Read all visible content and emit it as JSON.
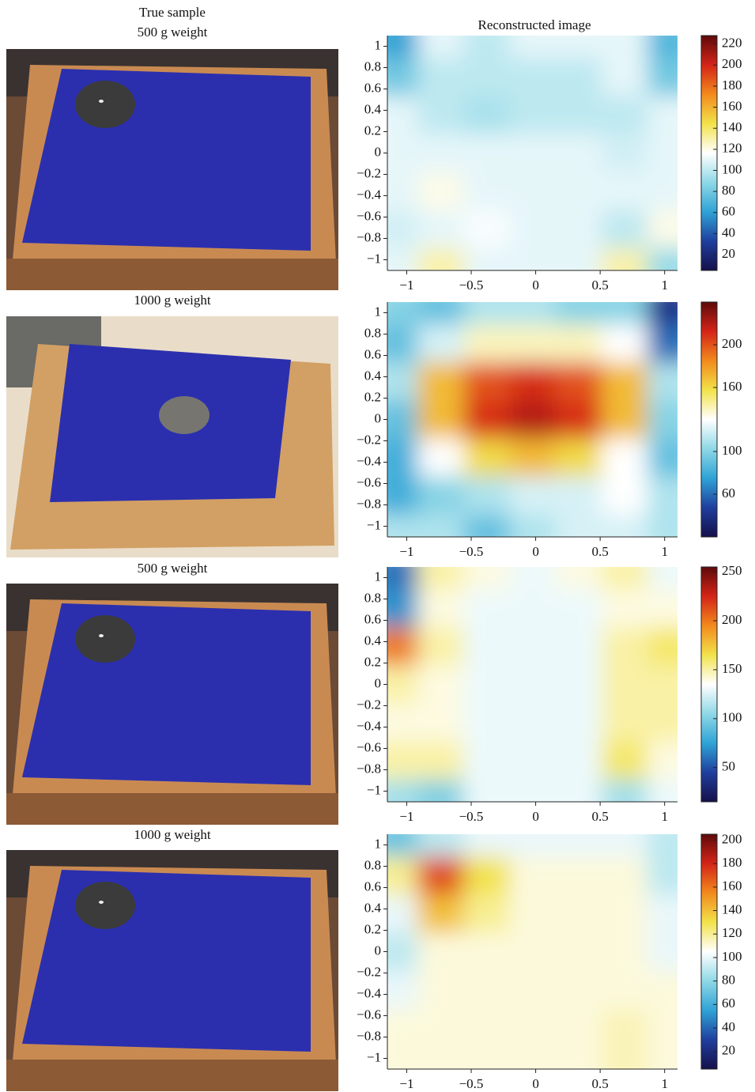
{
  "header": "True sample",
  "chart_data": [
    {
      "type": "heatmap",
      "caption": "500 g weight",
      "title": "Reconstructed image",
      "xlim": [
        -1.15,
        1.1
      ],
      "ylim": [
        -1.1,
        1.1
      ],
      "xticks": [
        {
          "value": -1,
          "label": "−1"
        },
        {
          "value": -0.5,
          "label": "−0.5"
        },
        0,
        0.5,
        1
      ],
      "yticks": [
        {
          "value": -1,
          "label": "−1"
        },
        {
          "value": -0.8,
          "label": "−0.8"
        },
        {
          "value": -0.6,
          "label": "−0.6"
        },
        {
          "value": -0.4,
          "label": "−0.4"
        },
        {
          "value": -0.2,
          "label": "−0.2"
        },
        0,
        0.2,
        0.4,
        0.6,
        0.8,
        1
      ],
      "clim": [
        5,
        228
      ],
      "cticks": [
        20,
        40,
        60,
        80,
        100,
        120,
        140,
        160,
        180,
        200,
        220
      ],
      "colormap": [
        "#15104a",
        "#1f3f9e",
        "#2fa3d6",
        "#8fd8e6",
        "#ffffff",
        "#f2e24a",
        "#f28a1c",
        "#d42418",
        "#5e0a0a"
      ],
      "z": [
        [
          60,
          110,
          100,
          110,
          110,
          110,
          70
        ],
        [
          80,
          100,
          100,
          100,
          100,
          110,
          80
        ],
        [
          110,
          100,
          95,
          100,
          100,
          100,
          110
        ],
        [
          110,
          110,
          110,
          110,
          110,
          105,
          110
        ],
        [
          110,
          120,
          110,
          110,
          110,
          110,
          110
        ],
        [
          105,
          110,
          115,
          110,
          110,
          100,
          120
        ],
        [
          110,
          130,
          110,
          110,
          110,
          130,
          90
        ]
      ]
    },
    {
      "type": "heatmap",
      "caption": "1000 g weight",
      "xlim": [
        -1.15,
        1.1
      ],
      "ylim": [
        -1.1,
        1.1
      ],
      "xticks": [
        {
          "value": -1,
          "label": "−1"
        },
        {
          "value": -0.5,
          "label": "−0.5"
        },
        0,
        0.5,
        1
      ],
      "yticks": [
        {
          "value": -1,
          "label": "−1"
        },
        {
          "value": -0.8,
          "label": "−0.8"
        },
        {
          "value": -0.6,
          "label": "−0.6"
        },
        {
          "value": -0.4,
          "label": "−0.4"
        },
        {
          "value": -0.2,
          "label": "−0.2"
        },
        0,
        0.2,
        0.4,
        0.6,
        0.8,
        1
      ],
      "clim": [
        20,
        240
      ],
      "cticks": [
        60,
        100,
        160,
        200
      ],
      "colormap": [
        "#15104a",
        "#1f3f9e",
        "#2fa3d6",
        "#8fd8e6",
        "#ffffff",
        "#f2e24a",
        "#f28a1c",
        "#d42418",
        "#5e0a0a"
      ],
      "z": [
        [
          100,
          90,
          110,
          110,
          100,
          100,
          40
        ],
        [
          90,
          120,
          140,
          140,
          140,
          130,
          60
        ],
        [
          110,
          170,
          200,
          210,
          200,
          170,
          110
        ],
        [
          90,
          170,
          210,
          220,
          210,
          170,
          100
        ],
        [
          80,
          130,
          160,
          170,
          160,
          130,
          90
        ],
        [
          80,
          100,
          110,
          120,
          120,
          130,
          110
        ],
        [
          110,
          110,
          90,
          110,
          120,
          120,
          110
        ]
      ]
    },
    {
      "type": "heatmap",
      "caption": "500 g weight",
      "xlim": [
        -1.15,
        1.1
      ],
      "ylim": [
        -1.1,
        1.1
      ],
      "xticks": [
        {
          "value": -1,
          "label": "−1"
        },
        {
          "value": -0.5,
          "label": "−0.5"
        },
        0,
        0.5,
        1
      ],
      "yticks": [
        {
          "value": -1,
          "label": "−1"
        },
        {
          "value": -0.8,
          "label": "−0.8"
        },
        {
          "value": -0.6,
          "label": "−0.6"
        },
        {
          "value": -0.4,
          "label": "−0.4"
        },
        {
          "value": -0.2,
          "label": "−0.2"
        },
        0,
        0.2,
        0.4,
        0.6,
        0.8,
        1
      ],
      "clim": [
        15,
        255
      ],
      "cticks": [
        50,
        100,
        150,
        200,
        250
      ],
      "colormap": [
        "#15104a",
        "#1f3f9e",
        "#2fa3d6",
        "#8fd8e6",
        "#ffffff",
        "#f2e24a",
        "#f28a1c",
        "#d42418",
        "#5e0a0a"
      ],
      "z": [
        [
          60,
          150,
          140,
          130,
          140,
          150,
          130
        ],
        [
          70,
          140,
          130,
          130,
          130,
          140,
          140
        ],
        [
          200,
          150,
          130,
          130,
          130,
          150,
          160
        ],
        [
          150,
          140,
          130,
          130,
          130,
          150,
          150
        ],
        [
          140,
          140,
          130,
          130,
          130,
          150,
          150
        ],
        [
          150,
          150,
          130,
          130,
          130,
          160,
          140
        ],
        [
          110,
          100,
          130,
          130,
          130,
          110,
          130
        ]
      ]
    },
    {
      "type": "heatmap",
      "caption": "1000 g weight",
      "xlim": [
        -1.15,
        1.1
      ],
      "ylim": [
        -1.1,
        1.1
      ],
      "xticks": [
        {
          "value": -1,
          "label": "−1"
        },
        {
          "value": -0.5,
          "label": "−0.5"
        },
        0,
        0.5,
        1
      ],
      "yticks": [
        {
          "value": -1,
          "label": "−1"
        },
        {
          "value": -0.8,
          "label": "−0.8"
        },
        {
          "value": -0.6,
          "label": "−0.6"
        },
        {
          "value": -0.4,
          "label": "−0.4"
        },
        {
          "value": -0.2,
          "label": "−0.2"
        },
        0,
        0.2,
        0.4,
        0.6,
        0.8,
        1
      ],
      "clim": [
        5,
        205
      ],
      "cticks": [
        20,
        40,
        60,
        80,
        100,
        120,
        140,
        160,
        180,
        200
      ],
      "colormap": [
        "#15104a",
        "#1f3f9e",
        "#2fa3d6",
        "#8fd8e6",
        "#ffffff",
        "#f2e24a",
        "#f28a1c",
        "#d42418",
        "#5e0a0a"
      ],
      "z": [
        [
          70,
          90,
          100,
          100,
          100,
          100,
          90
        ],
        [
          120,
          170,
          130,
          110,
          110,
          110,
          90
        ],
        [
          100,
          140,
          120,
          110,
          110,
          110,
          100
        ],
        [
          90,
          110,
          110,
          110,
          110,
          110,
          100
        ],
        [
          100,
          110,
          110,
          110,
          110,
          110,
          110
        ],
        [
          110,
          110,
          110,
          110,
          110,
          115,
          110
        ],
        [
          110,
          110,
          110,
          110,
          110,
          115,
          110
        ]
      ]
    }
  ]
}
